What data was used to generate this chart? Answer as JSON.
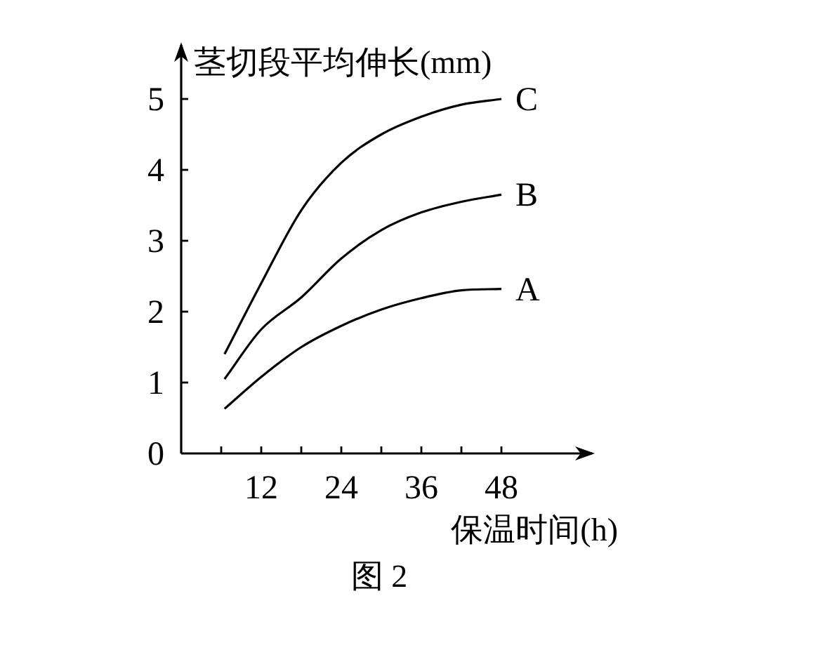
{
  "chart_data": {
    "type": "line",
    "ylabel": "茎切段平均伸长(mm)",
    "xlabel": "保温时间(h)",
    "x": [
      6.5,
      12,
      18,
      24,
      30,
      36,
      42,
      48
    ],
    "series": [
      {
        "name": "C",
        "color": "#000000",
        "values": [
          1.4,
          2.4,
          3.43,
          4.1,
          4.5,
          4.75,
          4.92,
          5.0
        ]
      },
      {
        "name": "B",
        "color": "#000000",
        "values": [
          1.05,
          1.75,
          2.2,
          2.75,
          3.15,
          3.4,
          3.55,
          3.65
        ]
      },
      {
        "name": "A",
        "color": "#000000",
        "values": [
          0.63,
          1.08,
          1.5,
          1.8,
          2.03,
          2.19,
          2.3,
          2.32
        ]
      }
    ],
    "xlim": [
      0,
      62
    ],
    "ylim": [
      0,
      5.8
    ],
    "xticks": [
      {
        "value": 6,
        "label": null
      },
      12,
      {
        "value": 18,
        "label": null
      },
      24,
      {
        "value": 30,
        "label": null
      },
      36,
      {
        "value": 42,
        "label": null
      },
      48
    ],
    "yticks": [
      0,
      1,
      2,
      3,
      4,
      5
    ],
    "annotations": [
      "图 2"
    ]
  }
}
